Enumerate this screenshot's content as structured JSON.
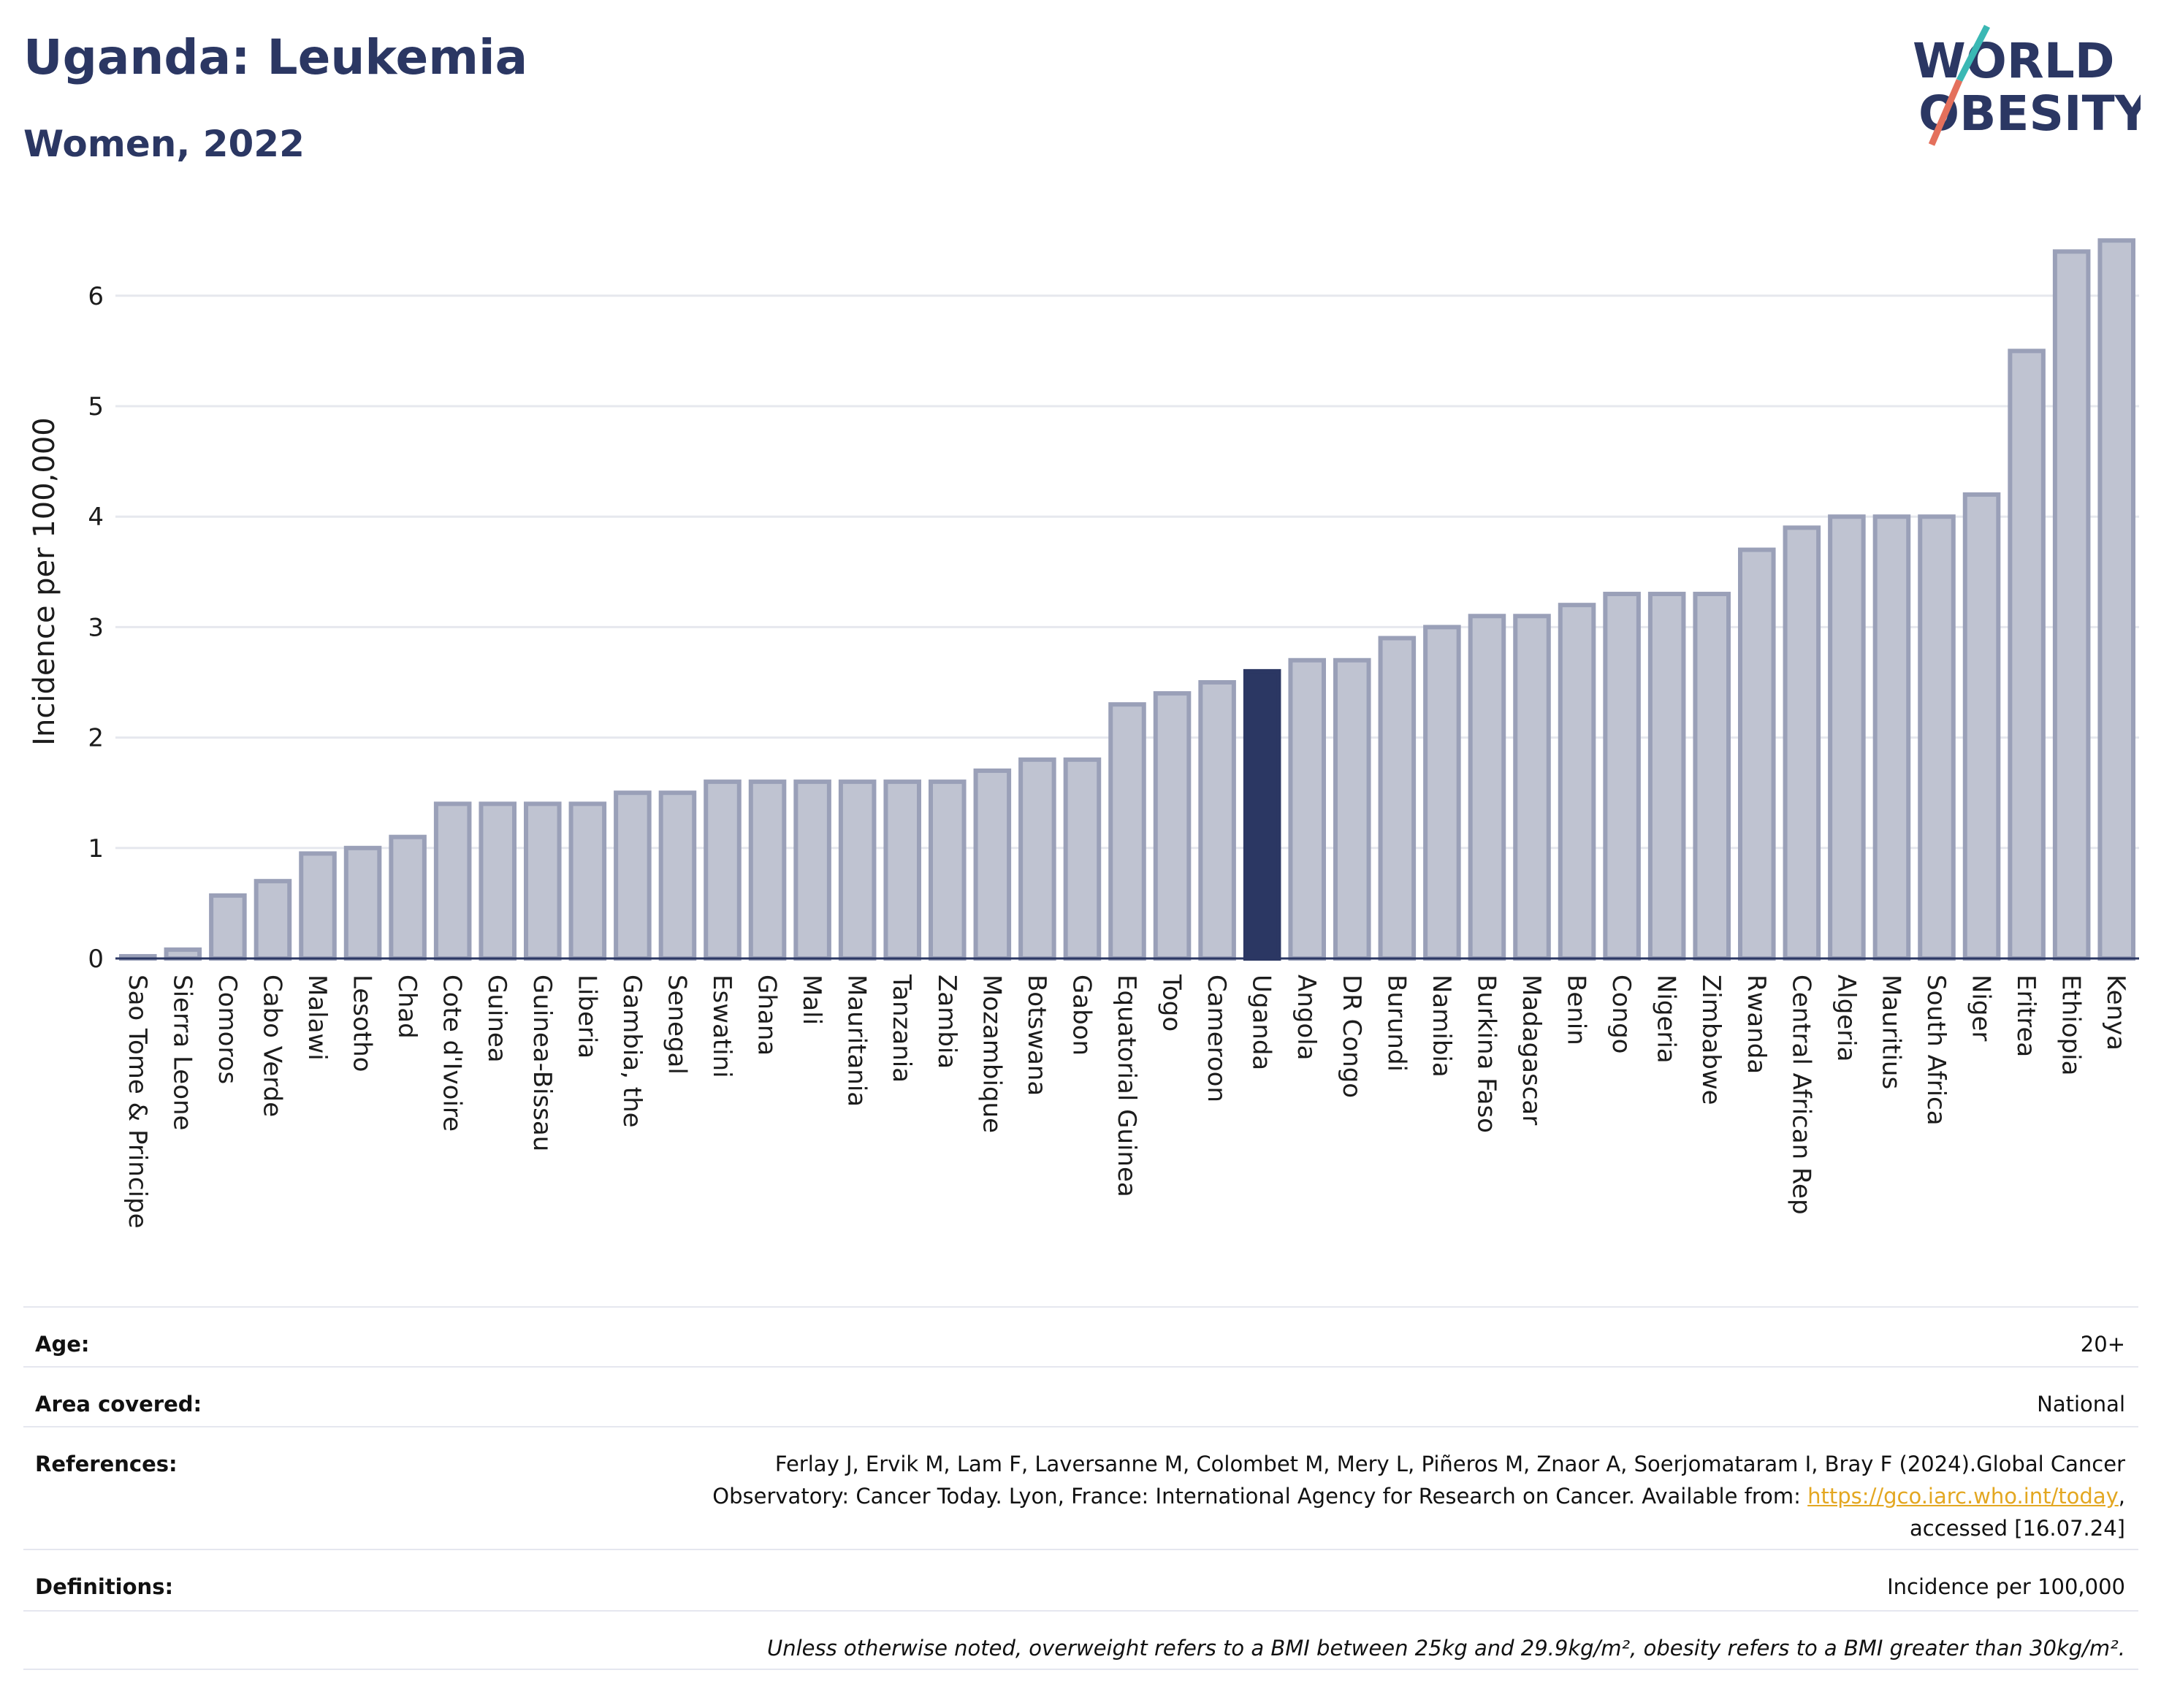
{
  "header": {
    "title": "Uganda: Leukemia",
    "subtitle": "Women, 2022",
    "logo_line1": "WORLD",
    "logo_line2": "OBESITY"
  },
  "colors": {
    "bar": "#bfc3d1",
    "bar_edge": "#9aa0b8",
    "highlight": "#2b3763",
    "title": "#2b3763",
    "link": "#e3a721",
    "logo_slash_teal": "#3ab8b4",
    "logo_slash_red": "#e4705c"
  },
  "chart_data": {
    "type": "bar",
    "title": "Uganda: Leukemia",
    "subtitle": "Women, 2022",
    "xlabel": "",
    "ylabel": "Incidence per 100,000",
    "ylim": [
      0,
      6.5
    ],
    "yticks": [
      0,
      1,
      2,
      3,
      4,
      5,
      6
    ],
    "grid": true,
    "highlight": "Uganda",
    "categories": [
      "Sao Tome & Principe",
      "Sierra Leone",
      "Comoros",
      "Cabo Verde",
      "Malawi",
      "Lesotho",
      "Chad",
      "Cote d'Ivoire",
      "Guinea",
      "Guinea-Bissau",
      "Liberia",
      "Gambia, the",
      "Senegal",
      "Eswatini",
      "Ghana",
      "Mali",
      "Mauritania",
      "Tanzania",
      "Zambia",
      "Mozambique",
      "Botswana",
      "Gabon",
      "Equatorial Guinea",
      "Togo",
      "Cameroon",
      "Uganda",
      "Angola",
      "DR Congo",
      "Burundi",
      "Namibia",
      "Burkina Faso",
      "Madagascar",
      "Benin",
      "Congo",
      "Nigeria",
      "Zimbabwe",
      "Rwanda",
      "Central African Rep",
      "Algeria",
      "Mauritius",
      "South Africa",
      "Niger",
      "Eritrea",
      "Ethiopia",
      "Kenya"
    ],
    "values": [
      0.02,
      0.08,
      0.57,
      0.7,
      0.95,
      1.0,
      1.1,
      1.4,
      1.4,
      1.4,
      1.4,
      1.5,
      1.5,
      1.6,
      1.6,
      1.6,
      1.6,
      1.6,
      1.6,
      1.7,
      1.8,
      1.8,
      2.3,
      2.4,
      2.5,
      2.6,
      2.7,
      2.7,
      2.9,
      3.0,
      3.1,
      3.1,
      3.2,
      3.3,
      3.3,
      3.3,
      3.7,
      3.9,
      4.0,
      4.0,
      4.0,
      4.2,
      5.5,
      6.4,
      6.5
    ]
  },
  "info": {
    "age_label": "Age:",
    "age_value": "20+",
    "area_label": "Area covered:",
    "area_value": "National",
    "references_label": "References:",
    "references_line1": "Ferlay J, Ervik M, Lam F, Laversanne M, Colombet M, Mery L, Piñeros M, Znaor A, Soerjomataram I, Bray F (2024).Global Cancer",
    "references_line2_pre": "Observatory: Cancer Today. Lyon, France: International Agency for Research on Cancer. Available from: ",
    "references_link": "https://gco.iarc.who.int/today",
    "references_line2_post": ",",
    "references_line3": "accessed [16.07.24]",
    "definitions_label": "Definitions:",
    "definitions_value": "Incidence per 100,000",
    "note": "Unless otherwise noted, overweight refers to a BMI between 25kg and 29.9kg/m², obesity refers to a BMI greater than 30kg/m²."
  }
}
